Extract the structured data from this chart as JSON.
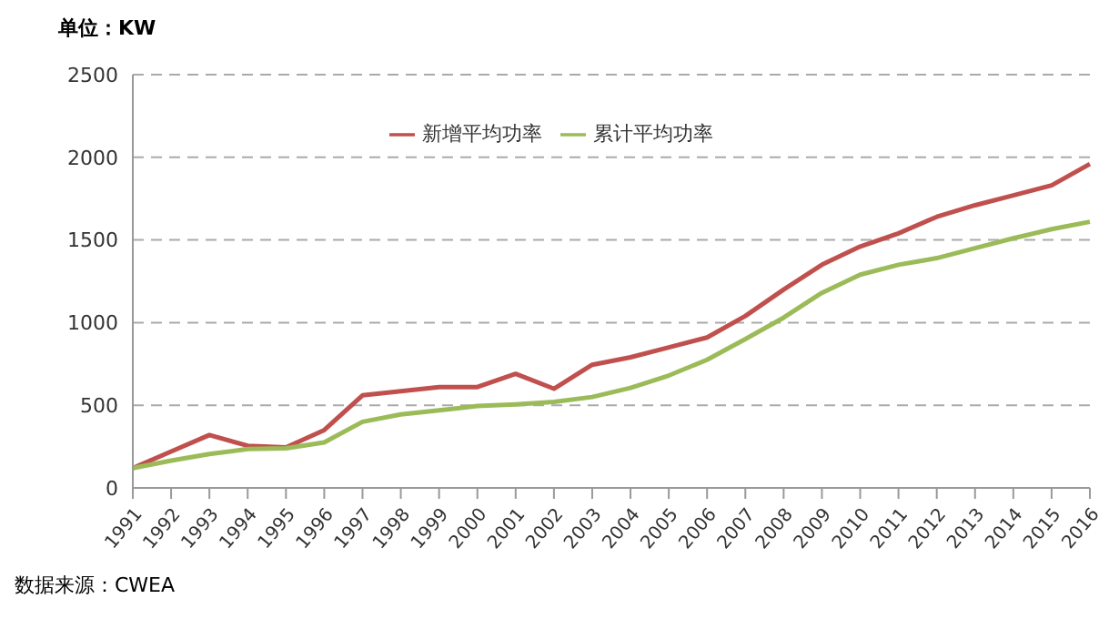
{
  "chart_data": {
    "type": "line",
    "ylabel": "单位：KW",
    "annotations": [
      "数据来源：CWEA"
    ],
    "categories": [
      "1991",
      "1992",
      "1993",
      "1994",
      "1995",
      "1996",
      "1997",
      "1998",
      "1999",
      "2000",
      "2001",
      "2002",
      "2003",
      "2004",
      "2005",
      "2006",
      "2007",
      "2008",
      "2009",
      "2010",
      "2011",
      "2012",
      "2013",
      "2014",
      "2015",
      "2016"
    ],
    "series": [
      {
        "name": "新增平均功率",
        "color": "#c0504d",
        "values": [
          120,
          220,
          320,
          255,
          245,
          350,
          560,
          585,
          610,
          610,
          690,
          600,
          745,
          790,
          850,
          910,
          1040,
          1200,
          1350,
          1460,
          1540,
          1640,
          1710,
          1770,
          1830,
          1960
        ]
      },
      {
        "name": "累计平均功率",
        "color": "#9bbb59",
        "values": [
          120,
          165,
          205,
          235,
          240,
          275,
          400,
          445,
          470,
          495,
          505,
          520,
          550,
          605,
          680,
          775,
          900,
          1030,
          1180,
          1290,
          1350,
          1390,
          1450,
          1510,
          1565,
          1610
        ]
      }
    ],
    "ylim": [
      0,
      2500
    ],
    "yticks": [
      0,
      500,
      1000,
      1500,
      2000,
      2500
    ],
    "grid": "y",
    "legend": "top",
    "marker": "none",
    "line_style": "solid"
  }
}
